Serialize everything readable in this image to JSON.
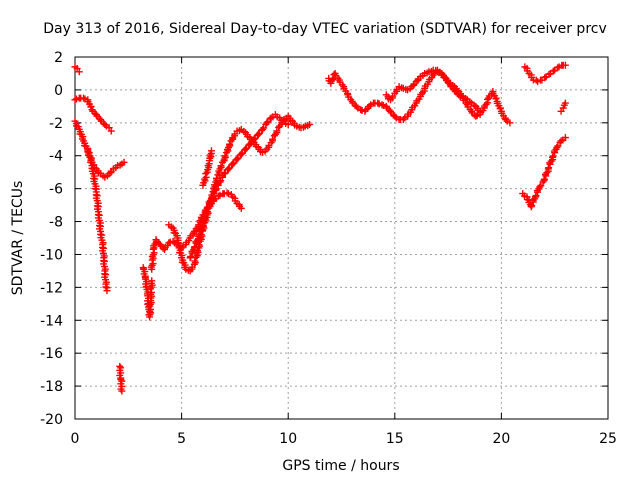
{
  "chart_data": {
    "type": "scatter",
    "title": "Day 313 of 2016, Sidereal Day-to-day VTEC variation (SDTVAR) for receiver prcv",
    "xlabel": "GPS time / hours",
    "ylabel": "SDTVAR / TECUs",
    "xlim": [
      0,
      25
    ],
    "ylim": [
      -20,
      2
    ],
    "xticks": [
      "0",
      "5",
      "10",
      "15",
      "20",
      "25"
    ],
    "xtick_values": [
      0,
      5,
      10,
      15,
      20,
      25
    ],
    "yticks": [
      "2",
      "0",
      "-2",
      "-4",
      "-6",
      "-8",
      "-10",
      "-12",
      "-14",
      "-16",
      "-18",
      "-20"
    ],
    "ytick_values": [
      2,
      0,
      -2,
      -4,
      -6,
      -8,
      -10,
      -12,
      -14,
      -16,
      -18,
      -20
    ],
    "grid": true,
    "grid_style": "dotted",
    "marker": "plus",
    "color": "#ff0000",
    "series": [
      {
        "points": [
          [
            0.0,
            1.4
          ],
          [
            0.1,
            1.3
          ],
          [
            0.2,
            1.1
          ]
        ]
      },
      {
        "points": [
          [
            0.0,
            -0.6
          ],
          [
            0.2,
            -0.5
          ],
          [
            0.4,
            -0.5
          ],
          [
            0.6,
            -0.6
          ],
          [
            0.8,
            -1.2
          ],
          [
            1.0,
            -1.5
          ],
          [
            1.2,
            -1.8
          ],
          [
            1.4,
            -2.1
          ],
          [
            1.6,
            -2.3
          ],
          [
            1.7,
            -2.5
          ]
        ]
      },
      {
        "points": [
          [
            0.0,
            -1.9
          ],
          [
            0.2,
            -2.4
          ],
          [
            0.4,
            -3.1
          ],
          [
            0.6,
            -3.7
          ],
          [
            0.8,
            -4.4
          ],
          [
            1.0,
            -4.8
          ],
          [
            1.2,
            -5.1
          ],
          [
            1.4,
            -5.3
          ],
          [
            1.6,
            -5.1
          ],
          [
            1.8,
            -4.8
          ],
          [
            2.0,
            -4.6
          ],
          [
            2.2,
            -4.5
          ],
          [
            2.3,
            -4.4
          ]
        ]
      },
      {
        "points": [
          [
            0.6,
            -3.6
          ],
          [
            0.8,
            -4.6
          ],
          [
            1.0,
            -6.2
          ],
          [
            1.1,
            -7.4
          ],
          [
            1.2,
            -8.6
          ],
          [
            1.3,
            -9.4
          ],
          [
            1.35,
            -10.2
          ],
          [
            1.4,
            -11.0
          ],
          [
            1.45,
            -11.8
          ],
          [
            1.5,
            -12.2
          ]
        ]
      },
      {
        "points": [
          [
            2.1,
            -16.8
          ],
          [
            2.15,
            -17.6
          ],
          [
            2.2,
            -18.3
          ]
        ]
      },
      {
        "points": [
          [
            3.2,
            -10.8
          ],
          [
            3.3,
            -11.4
          ],
          [
            3.4,
            -12.4
          ],
          [
            3.45,
            -13.2
          ],
          [
            3.5,
            -13.8
          ],
          [
            3.55,
            -12.8
          ],
          [
            3.6,
            -11.6
          ]
        ]
      },
      {
        "points": [
          [
            3.6,
            -10.9
          ],
          [
            3.7,
            -9.6
          ],
          [
            3.8,
            -9.1
          ],
          [
            4.0,
            -9.4
          ],
          [
            4.2,
            -9.7
          ],
          [
            4.4,
            -9.3
          ],
          [
            4.6,
            -9.2
          ],
          [
            4.8,
            -9.4
          ],
          [
            5.0,
            -9.6
          ],
          [
            5.2,
            -9.4
          ],
          [
            5.4,
            -9.0
          ],
          [
            5.6,
            -8.6
          ]
        ]
      },
      {
        "points": [
          [
            4.4,
            -8.2
          ],
          [
            4.6,
            -8.4
          ],
          [
            4.8,
            -9.0
          ],
          [
            5.0,
            -10.2
          ],
          [
            5.2,
            -10.9
          ],
          [
            5.4,
            -11.0
          ],
          [
            5.6,
            -10.6
          ],
          [
            5.8,
            -9.6
          ],
          [
            6.0,
            -8.5
          ],
          [
            6.2,
            -7.6
          ],
          [
            6.4,
            -6.6
          ],
          [
            6.6,
            -5.6
          ],
          [
            6.8,
            -4.8
          ],
          [
            7.0,
            -4.2
          ],
          [
            7.2,
            -3.5
          ],
          [
            7.4,
            -2.9
          ],
          [
            7.6,
            -2.5
          ],
          [
            7.8,
            -2.4
          ],
          [
            8.0,
            -2.6
          ],
          [
            8.2,
            -2.9
          ],
          [
            8.4,
            -3.2
          ],
          [
            8.6,
            -3.5
          ],
          [
            8.8,
            -3.8
          ],
          [
            9.0,
            -3.6
          ],
          [
            9.2,
            -3.2
          ],
          [
            9.4,
            -2.7
          ],
          [
            9.6,
            -2.2
          ],
          [
            9.8,
            -1.8
          ],
          [
            10.0,
            -1.6
          ],
          [
            10.2,
            -1.9
          ],
          [
            10.4,
            -2.2
          ],
          [
            10.6,
            -2.3
          ],
          [
            10.8,
            -2.2
          ],
          [
            11.0,
            -2.1
          ]
        ]
      },
      {
        "points": [
          [
            5.4,
            -10.2
          ],
          [
            5.6,
            -9.6
          ],
          [
            5.8,
            -8.9
          ],
          [
            6.0,
            -8.1
          ],
          [
            6.2,
            -7.2
          ],
          [
            6.4,
            -6.6
          ],
          [
            6.6,
            -6.1
          ],
          [
            6.8,
            -5.6
          ],
          [
            7.0,
            -5.1
          ],
          [
            7.2,
            -4.8
          ],
          [
            7.4,
            -4.5
          ],
          [
            7.6,
            -4.2
          ],
          [
            7.8,
            -3.9
          ],
          [
            8.0,
            -3.6
          ],
          [
            8.2,
            -3.3
          ],
          [
            8.4,
            -3.0
          ],
          [
            8.6,
            -2.7
          ],
          [
            8.8,
            -2.4
          ],
          [
            9.0,
            -2.0
          ],
          [
            9.2,
            -1.7
          ],
          [
            9.4,
            -1.5
          ],
          [
            9.6,
            -1.7
          ],
          [
            9.8,
            -1.9
          ],
          [
            10.0,
            -2.1
          ]
        ]
      },
      {
        "points": [
          [
            5.6,
            -8.7
          ],
          [
            5.8,
            -8.2
          ],
          [
            6.0,
            -7.6
          ],
          [
            6.2,
            -7.2
          ],
          [
            6.4,
            -6.9
          ],
          [
            6.6,
            -6.6
          ],
          [
            6.8,
            -6.4
          ],
          [
            7.0,
            -6.3
          ],
          [
            7.2,
            -6.3
          ],
          [
            7.4,
            -6.5
          ],
          [
            7.6,
            -6.9
          ],
          [
            7.8,
            -7.2
          ]
        ]
      },
      {
        "points": [
          [
            6.0,
            -5.8
          ],
          [
            6.2,
            -5.0
          ],
          [
            6.3,
            -4.3
          ],
          [
            6.4,
            -3.7
          ]
        ]
      },
      {
        "points": [
          [
            11.9,
            0.7
          ],
          [
            12.0,
            0.4
          ],
          [
            12.2,
            1.0
          ],
          [
            12.4,
            0.6
          ],
          [
            12.6,
            0.2
          ],
          [
            12.8,
            -0.3
          ],
          [
            13.0,
            -0.7
          ],
          [
            13.2,
            -1.0
          ],
          [
            13.4,
            -1.2
          ],
          [
            13.6,
            -1.3
          ],
          [
            13.8,
            -1.0
          ],
          [
            14.0,
            -0.8
          ],
          [
            14.2,
            -0.8
          ],
          [
            14.4,
            -0.9
          ],
          [
            14.6,
            -1.0
          ],
          [
            14.8,
            -1.3
          ],
          [
            15.0,
            -1.6
          ],
          [
            15.2,
            -1.8
          ],
          [
            15.4,
            -1.8
          ],
          [
            15.6,
            -1.6
          ],
          [
            15.8,
            -1.2
          ],
          [
            16.0,
            -0.8
          ],
          [
            16.2,
            -0.4
          ],
          [
            16.4,
            0.1
          ],
          [
            16.6,
            0.5
          ],
          [
            16.8,
            0.9
          ],
          [
            17.0,
            1.1
          ],
          [
            17.2,
            1.0
          ],
          [
            17.4,
            0.7
          ],
          [
            17.6,
            0.3
          ],
          [
            17.8,
            0.0
          ],
          [
            18.0,
            -0.3
          ],
          [
            18.2,
            -0.5
          ],
          [
            18.4,
            -0.9
          ],
          [
            18.6,
            -1.3
          ],
          [
            18.8,
            -1.6
          ],
          [
            19.0,
            -1.5
          ],
          [
            19.2,
            -1.1
          ],
          [
            19.4,
            -0.5
          ],
          [
            19.6,
            -0.1
          ],
          [
            19.8,
            -0.7
          ],
          [
            20.0,
            -1.3
          ],
          [
            20.2,
            -1.8
          ],
          [
            20.4,
            -2.0
          ]
        ]
      },
      {
        "points": [
          [
            14.6,
            -0.3
          ],
          [
            14.8,
            -0.6
          ],
          [
            15.0,
            -0.2
          ],
          [
            15.2,
            0.2
          ],
          [
            15.4,
            0.1
          ],
          [
            15.6,
            0.0
          ],
          [
            15.8,
            0.2
          ],
          [
            16.0,
            0.5
          ],
          [
            16.2,
            0.8
          ],
          [
            16.4,
            1.0
          ],
          [
            16.6,
            1.1
          ],
          [
            16.8,
            1.2
          ],
          [
            17.0,
            1.2
          ],
          [
            17.2,
            1.0
          ],
          [
            17.4,
            0.7
          ],
          [
            17.6,
            0.4
          ],
          [
            17.8,
            0.2
          ],
          [
            18.0,
            -0.1
          ],
          [
            18.2,
            -0.4
          ],
          [
            18.4,
            -0.6
          ],
          [
            18.6,
            -0.8
          ],
          [
            18.8,
            -1.0
          ],
          [
            19.0,
            -1.3
          ]
        ]
      },
      {
        "points": [
          [
            21.0,
            -6.3
          ],
          [
            21.2,
            -6.5
          ],
          [
            21.4,
            -7.1
          ],
          [
            21.6,
            -6.5
          ],
          [
            21.8,
            -5.9
          ],
          [
            22.0,
            -5.5
          ],
          [
            22.2,
            -4.8
          ],
          [
            22.4,
            -4.1
          ],
          [
            22.6,
            -3.5
          ],
          [
            22.8,
            -3.1
          ],
          [
            23.0,
            -2.9
          ]
        ]
      },
      {
        "points": [
          [
            21.1,
            1.4
          ],
          [
            21.3,
            1.0
          ],
          [
            21.5,
            0.6
          ],
          [
            21.7,
            0.5
          ],
          [
            21.9,
            0.6
          ],
          [
            22.1,
            0.8
          ],
          [
            22.3,
            1.0
          ],
          [
            22.5,
            1.2
          ],
          [
            22.7,
            1.4
          ],
          [
            22.9,
            1.5
          ],
          [
            23.0,
            1.5
          ]
        ]
      },
      {
        "points": [
          [
            22.8,
            -1.3
          ],
          [
            22.9,
            -1.1
          ],
          [
            23.0,
            -0.8
          ]
        ]
      }
    ]
  }
}
